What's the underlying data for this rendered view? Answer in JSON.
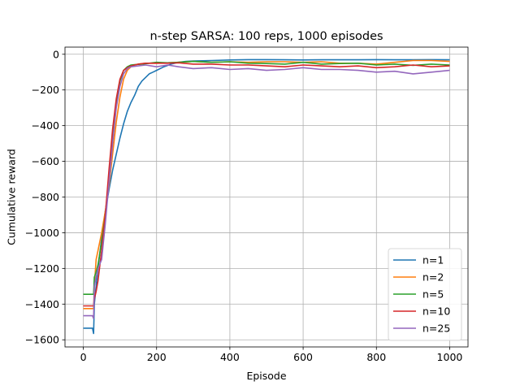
{
  "chart_data": {
    "type": "line",
    "title": "n-step SARSA: 100 reps, 1000 episodes",
    "xlabel": "Episode",
    "ylabel": "Cumulative reward",
    "xlim": [
      -50,
      1050
    ],
    "ylim": [
      -1640,
      40
    ],
    "xticks": [
      0,
      200,
      400,
      600,
      800,
      1000
    ],
    "yticks": [
      0,
      -200,
      -400,
      -600,
      -800,
      -1000,
      -1200,
      -1400,
      -1600
    ],
    "xtick_labels": [
      "0",
      "200",
      "400",
      "600",
      "800",
      "1000"
    ],
    "ytick_labels": [
      "0",
      "−200",
      "−400",
      "−600",
      "−800",
      "−1000",
      "−1200",
      "−1400",
      "−1600"
    ],
    "grid": true,
    "legend_position": "lower-right",
    "series": [
      {
        "name": "n=1",
        "color": "#1f77b4",
        "x": [
          0,
          25,
          28,
          30,
          35,
          40,
          50,
          60,
          70,
          80,
          90,
          100,
          110,
          120,
          130,
          140,
          150,
          160,
          170,
          180,
          190,
          200,
          220,
          240,
          260,
          280,
          300,
          350,
          400,
          450,
          500,
          550,
          600,
          650,
          700,
          750,
          800,
          850,
          900,
          950,
          1000
        ],
        "y": [
          -1535,
          -1535,
          -1565,
          -1400,
          -1300,
          -1200,
          -1030,
          -880,
          -760,
          -650,
          -560,
          -470,
          -390,
          -320,
          -270,
          -230,
          -180,
          -150,
          -130,
          -110,
          -100,
          -90,
          -70,
          -55,
          -45,
          -40,
          -38,
          -35,
          -32,
          -30,
          -30,
          -31,
          -32,
          -31,
          -31,
          -31,
          -30,
          -31,
          -31,
          -30,
          -31
        ]
      },
      {
        "name": "n=2",
        "color": "#ff7f0e",
        "x": [
          0,
          28,
          30,
          35,
          40,
          50,
          60,
          70,
          80,
          90,
          100,
          110,
          120,
          130,
          140,
          150,
          170,
          200,
          230,
          260,
          300,
          350,
          400,
          450,
          500,
          550,
          600,
          650,
          700,
          750,
          800,
          850,
          900,
          950,
          1000
        ],
        "y": [
          -1425,
          -1425,
          -1300,
          -1150,
          -1100,
          -1000,
          -880,
          -740,
          -560,
          -380,
          -240,
          -140,
          -90,
          -70,
          -60,
          -55,
          -50,
          -50,
          -48,
          -45,
          -40,
          -45,
          -42,
          -45,
          -42,
          -42,
          -45,
          -42,
          -50,
          -50,
          -55,
          -45,
          -35,
          -35,
          -40
        ]
      },
      {
        "name": "n=5",
        "color": "#2ca02c",
        "x": [
          0,
          28,
          30,
          35,
          40,
          50,
          60,
          70,
          80,
          90,
          100,
          110,
          120,
          130,
          140,
          160,
          180,
          200,
          230,
          260,
          300,
          350,
          400,
          450,
          500,
          550,
          600,
          650,
          700,
          750,
          800,
          850,
          900,
          950,
          1000
        ],
        "y": [
          -1345,
          -1345,
          -1250,
          -1220,
          -1180,
          -1050,
          -900,
          -700,
          -480,
          -280,
          -150,
          -90,
          -70,
          -60,
          -58,
          -55,
          -50,
          -45,
          -48,
          -45,
          -40,
          -45,
          -42,
          -50,
          -52,
          -55,
          -45,
          -55,
          -52,
          -50,
          -60,
          -55,
          -62,
          -55,
          -60
        ]
      },
      {
        "name": "n=10",
        "color": "#d62728",
        "x": [
          0,
          28,
          30,
          35,
          40,
          50,
          60,
          70,
          80,
          90,
          100,
          110,
          120,
          130,
          140,
          150,
          170,
          200,
          230,
          260,
          300,
          350,
          400,
          450,
          500,
          550,
          600,
          650,
          700,
          750,
          800,
          850,
          900,
          950,
          1000
        ],
        "y": [
          -1410,
          -1410,
          -1370,
          -1330,
          -1270,
          -1100,
          -900,
          -650,
          -420,
          -250,
          -140,
          -90,
          -75,
          -65,
          -60,
          -55,
          -50,
          -50,
          -50,
          -48,
          -55,
          -55,
          -60,
          -60,
          -65,
          -70,
          -60,
          -65,
          -70,
          -65,
          -75,
          -70,
          -60,
          -70,
          -65
        ]
      },
      {
        "name": "n=25",
        "color": "#9467bd",
        "x": [
          0,
          25,
          28,
          30,
          35,
          40,
          50,
          60,
          70,
          80,
          90,
          100,
          110,
          120,
          130,
          150,
          170,
          200,
          230,
          260,
          300,
          350,
          400,
          450,
          500,
          550,
          600,
          650,
          700,
          750,
          800,
          850,
          900,
          950,
          1000
        ],
        "y": [
          -1465,
          -1465,
          -1480,
          -1300,
          -1250,
          -1200,
          -1150,
          -950,
          -720,
          -500,
          -300,
          -180,
          -110,
          -80,
          -70,
          -65,
          -60,
          -70,
          -60,
          -70,
          -80,
          -75,
          -85,
          -80,
          -90,
          -85,
          -75,
          -85,
          -85,
          -90,
          -100,
          -95,
          -110,
          -100,
          -90
        ]
      }
    ]
  }
}
